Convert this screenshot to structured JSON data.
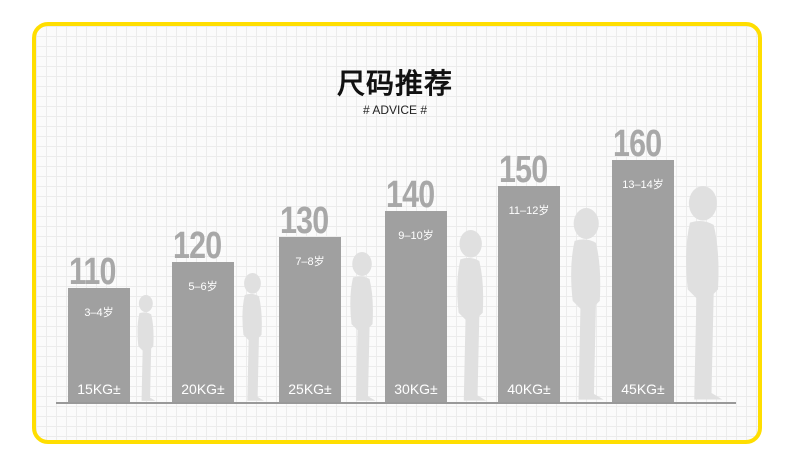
{
  "chart_data": {
    "type": "bar",
    "title": "尺码推荐",
    "subtitle": "# ADVICE #",
    "categories": [
      "110",
      "120",
      "130",
      "140",
      "150",
      "160"
    ],
    "values": [
      110,
      120,
      130,
      140,
      150,
      160
    ],
    "ages": [
      "3–4岁",
      "5–6岁",
      "7–8岁",
      "9–10岁",
      "11–12岁",
      "13–14岁"
    ],
    "weights": [
      "15KG±",
      "20KG±",
      "25KG±",
      "30KG±",
      "40KG±",
      "45KG±"
    ],
    "bar_color": "#a0a0a0",
    "silhouette_color": "#e0e0e0",
    "frame_color": "#ffde00"
  }
}
